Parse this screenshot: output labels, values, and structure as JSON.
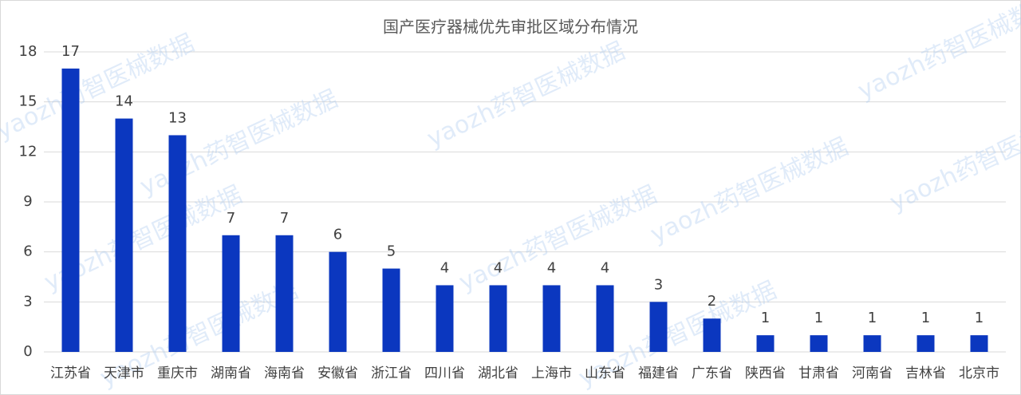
{
  "chart_data": {
    "type": "bar",
    "title": "国产医疗器械优先审批区域分布情况",
    "categories": [
      "江苏省",
      "天津市",
      "重庆市",
      "湖南省",
      "海南省",
      "安徽省",
      "浙江省",
      "四川省",
      "湖北省",
      "上海市",
      "山东省",
      "福建省",
      "广东省",
      "陕西省",
      "甘肃省",
      "河南省",
      "吉林省",
      "北京市"
    ],
    "values": [
      17,
      14,
      13,
      7,
      7,
      6,
      5,
      4,
      4,
      4,
      4,
      3,
      2,
      1,
      1,
      1,
      1,
      1
    ],
    "color": "#0b37bf",
    "ylim": [
      0,
      18
    ],
    "yticks": [
      0,
      3,
      6,
      9,
      12,
      15,
      18
    ],
    "grid": true,
    "watermark": "yaozh药智医械数据"
  }
}
